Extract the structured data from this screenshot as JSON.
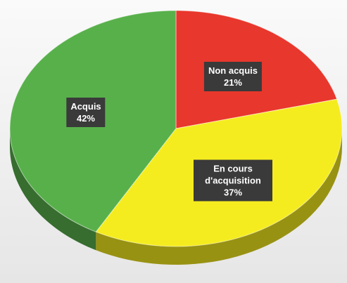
{
  "chart_data": {
    "type": "pie",
    "categories": [
      "Non acquis",
      "En cours d'acquisition",
      "Acquis"
    ],
    "values": [
      21,
      37,
      42
    ],
    "value_labels": [
      "21%",
      "37%",
      "42%"
    ],
    "colors": [
      "#e8372c",
      "#f5ec1f",
      "#58b04b"
    ]
  }
}
